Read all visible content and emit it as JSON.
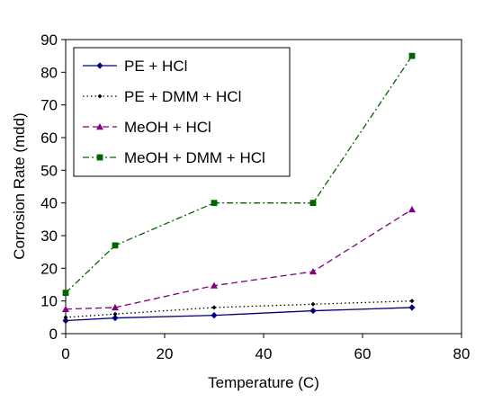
{
  "chart_data": {
    "type": "line",
    "xlabel": "Temperature (C)",
    "ylabel": "Corrosion Rate (mdd)",
    "xlim": [
      0,
      80
    ],
    "ylim": [
      0,
      90
    ],
    "xticks": [
      0,
      20,
      40,
      60,
      80
    ],
    "yticks": [
      0,
      10,
      20,
      30,
      40,
      50,
      60,
      70,
      80,
      90
    ],
    "grid": false,
    "legend_position": "top-left",
    "series": [
      {
        "name": "PE + HCl",
        "color": "#000080",
        "line_style": "solid",
        "marker": "diamond",
        "x": [
          0,
          10,
          30,
          50,
          70
        ],
        "y": [
          4,
          4.8,
          5.6,
          7,
          8
        ]
      },
      {
        "name": "PE + DMM + HCl",
        "color": "#000000",
        "line_style": "dotted",
        "marker": "small-diamond",
        "x": [
          0,
          10,
          30,
          50,
          70
        ],
        "y": [
          5,
          6,
          8,
          9,
          10
        ]
      },
      {
        "name": "MeOH + HCl",
        "color": "#800080",
        "line_style": "dashed",
        "marker": "triangle",
        "x": [
          0,
          10,
          30,
          50,
          70
        ],
        "y": [
          7.5,
          8,
          14.7,
          19,
          38
        ]
      },
      {
        "name": "MeOH + DMM + HCl",
        "color": "#006400",
        "line_style": "dash-dot",
        "marker": "square",
        "x": [
          0,
          10,
          30,
          50,
          70
        ],
        "y": [
          12.5,
          27,
          40,
          40,
          85
        ]
      }
    ]
  }
}
